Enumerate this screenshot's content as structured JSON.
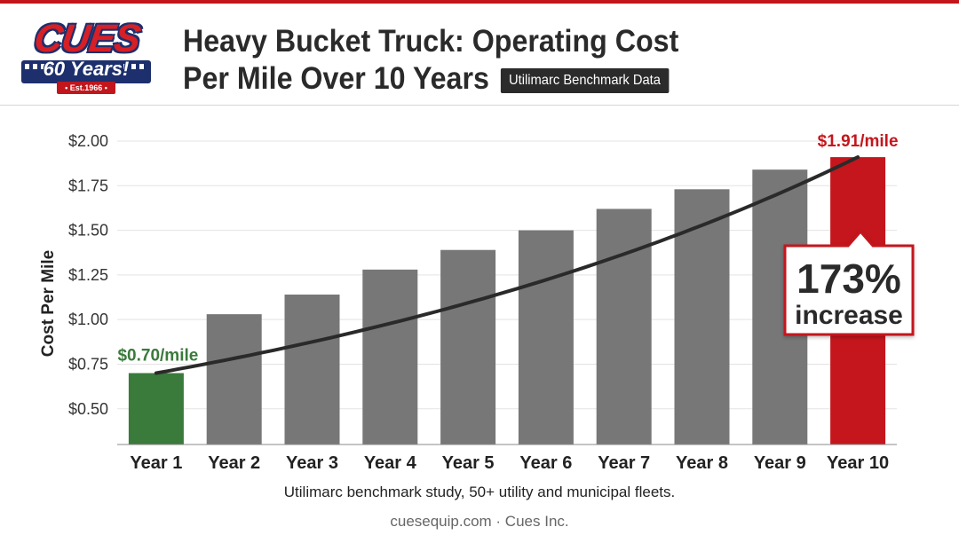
{
  "logo": {
    "wordmark": "CUES",
    "years": "60 Years!",
    "est": "• Est.1966 •"
  },
  "header": {
    "title_line1": "Heavy Bucket Truck: Operating Cost",
    "title_line2": "Per Mile Over 10 Years",
    "badge": "Utilimarc Benchmark Data"
  },
  "chart_data": {
    "type": "bar",
    "categories": [
      "Year 1",
      "Year 2",
      "Year 3",
      "Year 4",
      "Year 5",
      "Year 6",
      "Year 7",
      "Year 8",
      "Year 9",
      "Year 10"
    ],
    "values": [
      0.7,
      1.03,
      1.14,
      1.28,
      1.39,
      1.5,
      1.62,
      1.73,
      1.84,
      1.91
    ],
    "ylabel": "Cost Per Mile",
    "ylim": [
      0.3,
      2.0
    ],
    "yticks": [
      "$0.50",
      "$0.75",
      "$1.00",
      "$1.25",
      "$1.50",
      "$1.75",
      "$2.00"
    ],
    "ytick_values": [
      0.5,
      0.75,
      1.0,
      1.25,
      1.5,
      1.75,
      2.0
    ],
    "grid": true,
    "trend_line": "exponential curve from Year 1 to Year 10",
    "annotations": {
      "first_label": "$0.70/mile",
      "last_label": "$1.91/mile",
      "callout_value": "173%",
      "callout_text": "increase"
    },
    "colors": {
      "first_bar": "#3a7a3b",
      "middle_bars": "#777777",
      "last_bar": "#c4161c",
      "trend": "#2a2a2a"
    }
  },
  "source": "Utilimarc benchmark study, 50+ utility and municipal fleets.",
  "footer": "cuesequip.com · Cues Inc."
}
